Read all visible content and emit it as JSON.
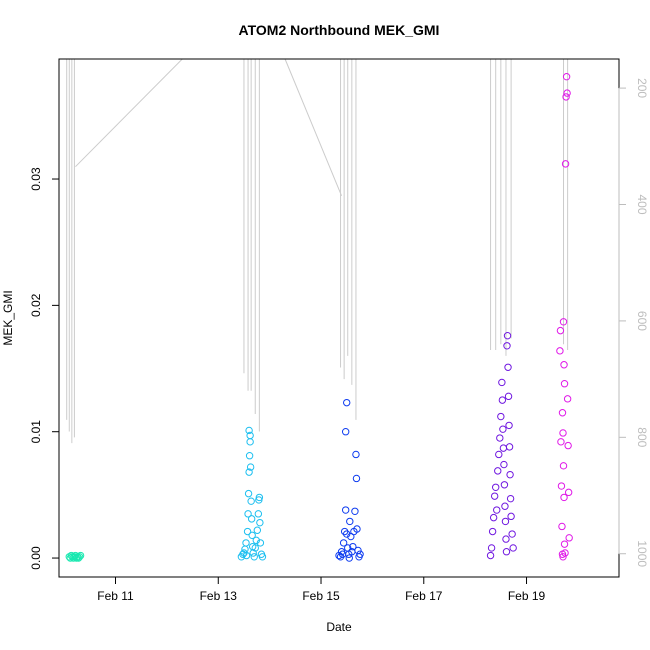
{
  "chart_data": {
    "type": "scatter",
    "title": "ATOM2 Northbound MEK_GMI",
    "xlabel": "Date",
    "ylabel": "MEK_GMI",
    "x_ticks": [
      "Feb 11",
      "Feb 13",
      "Feb 15",
      "Feb 17",
      "Feb 19"
    ],
    "x_tick_days": [
      11,
      13,
      15,
      17,
      19
    ],
    "xlim": [
      9.9,
      20.8
    ],
    "ylim": [
      -0.0015,
      0.0395
    ],
    "y_ticks": [
      "0.00",
      "0.01",
      "0.02",
      "0.03"
    ],
    "y_tick_values": [
      0,
      0.01,
      0.02,
      0.03
    ],
    "right_axis": {
      "ticks": [
        "200",
        "400",
        "600",
        "800",
        "1000"
      ],
      "tick_values": [
        200,
        400,
        600,
        800,
        1000
      ],
      "lim": [
        1040,
        150
      ],
      "color": "#bdbdbd"
    },
    "grid": false,
    "point_style": "open-circle",
    "series": [
      {
        "color": "#18e8b0",
        "points": [
          [
            10.1,
            0.0001
          ],
          [
            10.12,
            0.0
          ],
          [
            10.14,
            0.0002
          ],
          [
            10.16,
            0.0001
          ],
          [
            10.18,
            0.0
          ],
          [
            10.2,
            0.0001
          ],
          [
            10.22,
            0.0002
          ],
          [
            10.24,
            0.0
          ],
          [
            10.26,
            0.0001
          ],
          [
            10.28,
            0.0
          ],
          [
            10.3,
            0.0001
          ],
          [
            10.32,
            0.0002
          ]
        ]
      },
      {
        "color": "#1cbff0",
        "points": [
          [
            13.45,
            0.0001
          ],
          [
            13.48,
            0.0003
          ],
          [
            13.5,
            0.0004
          ],
          [
            13.52,
            0.0007
          ],
          [
            13.54,
            0.0012
          ],
          [
            13.55,
            0.0002
          ],
          [
            13.57,
            0.0021
          ],
          [
            13.58,
            0.0035
          ],
          [
            13.59,
            0.0051
          ],
          [
            13.6,
            0.0068
          ],
          [
            13.61,
            0.0081
          ],
          [
            13.62,
            0.0092
          ],
          [
            13.6,
            0.0101
          ],
          [
            13.62,
            0.0097
          ],
          [
            13.63,
            0.0072
          ],
          [
            13.64,
            0.0045
          ],
          [
            13.65,
            0.0031
          ],
          [
            13.66,
            0.0018
          ],
          [
            13.67,
            0.0009
          ],
          [
            13.68,
            0.0004
          ],
          [
            13.7,
            0.0001
          ],
          [
            13.72,
            0.0008
          ],
          [
            13.74,
            0.0014
          ],
          [
            13.76,
            0.0022
          ],
          [
            13.78,
            0.0035
          ],
          [
            13.79,
            0.0046
          ],
          [
            13.8,
            0.0048
          ],
          [
            13.81,
            0.0028
          ],
          [
            13.82,
            0.0012
          ],
          [
            13.84,
            0.0003
          ],
          [
            13.86,
            0.0001
          ]
        ]
      },
      {
        "color": "#0e3cf0",
        "points": [
          [
            15.35,
            0.0002
          ],
          [
            15.38,
            0.0001
          ],
          [
            15.4,
            0.0005
          ],
          [
            15.42,
            0.0003
          ],
          [
            15.44,
            0.0012
          ],
          [
            15.46,
            0.0021
          ],
          [
            15.48,
            0.0038
          ],
          [
            15.5,
            0.0019
          ],
          [
            15.52,
            0.0008
          ],
          [
            15.54,
            0.0003
          ],
          [
            15.55,
            0.0
          ],
          [
            15.5,
            0.0123
          ],
          [
            15.48,
            0.01
          ],
          [
            15.56,
            0.0029
          ],
          [
            15.58,
            0.0017
          ],
          [
            15.6,
            0.0005
          ],
          [
            15.62,
            0.0009
          ],
          [
            15.64,
            0.0021
          ],
          [
            15.66,
            0.0037
          ],
          [
            15.68,
            0.0082
          ],
          [
            15.69,
            0.0063
          ],
          [
            15.7,
            0.0023
          ],
          [
            15.72,
            0.0006
          ],
          [
            15.74,
            0.0001
          ],
          [
            15.76,
            0.0003
          ]
        ]
      },
      {
        "color": "#7018e0",
        "points": [
          [
            18.3,
            0.0002
          ],
          [
            18.32,
            0.0008
          ],
          [
            18.34,
            0.0021
          ],
          [
            18.36,
            0.0032
          ],
          [
            18.38,
            0.0049
          ],
          [
            18.4,
            0.0056
          ],
          [
            18.42,
            0.0038
          ],
          [
            18.44,
            0.0069
          ],
          [
            18.46,
            0.0082
          ],
          [
            18.48,
            0.0095
          ],
          [
            18.5,
            0.0112
          ],
          [
            18.52,
            0.0139
          ],
          [
            18.53,
            0.0125
          ],
          [
            18.54,
            0.0102
          ],
          [
            18.55,
            0.0087
          ],
          [
            18.56,
            0.0074
          ],
          [
            18.57,
            0.0058
          ],
          [
            18.58,
            0.0041
          ],
          [
            18.59,
            0.0029
          ],
          [
            18.6,
            0.0015
          ],
          [
            18.61,
            0.0005
          ],
          [
            18.62,
            0.0168
          ],
          [
            18.63,
            0.0176
          ],
          [
            18.64,
            0.0151
          ],
          [
            18.65,
            0.0128
          ],
          [
            18.66,
            0.0105
          ],
          [
            18.67,
            0.0088
          ],
          [
            18.68,
            0.0066
          ],
          [
            18.69,
            0.0047
          ],
          [
            18.7,
            0.0033
          ],
          [
            18.72,
            0.0019
          ],
          [
            18.74,
            0.0008
          ]
        ]
      },
      {
        "color": "#e018e8",
        "points": [
          [
            19.65,
            0.0164
          ],
          [
            19.66,
            0.018
          ],
          [
            19.67,
            0.0092
          ],
          [
            19.68,
            0.0057
          ],
          [
            19.69,
            0.0025
          ],
          [
            19.7,
            0.0003
          ],
          [
            19.71,
            0.0001
          ],
          [
            19.72,
            0.0187
          ],
          [
            19.73,
            0.0153
          ],
          [
            19.74,
            0.0138
          ],
          [
            19.7,
            0.0115
          ],
          [
            19.71,
            0.0099
          ],
          [
            19.72,
            0.0073
          ],
          [
            19.73,
            0.0048
          ],
          [
            19.74,
            0.0011
          ],
          [
            19.75,
            0.0004
          ],
          [
            19.76,
            0.0312
          ],
          [
            19.77,
            0.0365
          ],
          [
            19.78,
            0.0381
          ],
          [
            19.79,
            0.0368
          ],
          [
            19.8,
            0.0126
          ],
          [
            19.81,
            0.0089
          ],
          [
            19.82,
            0.0052
          ],
          [
            19.83,
            0.0016
          ]
        ]
      }
    ],
    "profile_lines": {
      "color": "#cccccc",
      "units": "right-axis",
      "segments": [
        {
          "x": 10.05,
          "top": 150,
          "bottom": 770
        },
        {
          "x": 10.1,
          "top": 150,
          "bottom": 790
        },
        {
          "x": 10.15,
          "top": 150,
          "bottom": 810
        },
        {
          "x": 10.2,
          "top": 150,
          "bottom": 800
        },
        {
          "x": 13.5,
          "top": 150,
          "bottom": 690
        },
        {
          "x": 13.58,
          "top": 150,
          "bottom": 720
        },
        {
          "x": 13.64,
          "top": 150,
          "bottom": 720
        },
        {
          "x": 13.72,
          "top": 150,
          "bottom": 760
        },
        {
          "x": 13.8,
          "top": 150,
          "bottom": 790
        },
        {
          "x": 15.38,
          "top": 150,
          "bottom": 680
        },
        {
          "x": 15.45,
          "top": 150,
          "bottom": 700
        },
        {
          "x": 15.52,
          "top": 150,
          "bottom": 660
        },
        {
          "x": 15.6,
          "top": 150,
          "bottom": 710
        },
        {
          "x": 15.68,
          "top": 150,
          "bottom": 770
        },
        {
          "x": 18.3,
          "top": 150,
          "bottom": 650
        },
        {
          "x": 18.4,
          "top": 150,
          "bottom": 650
        },
        {
          "x": 18.5,
          "top": 150,
          "bottom": 640
        },
        {
          "x": 18.6,
          "top": 150,
          "bottom": 660
        },
        {
          "x": 18.7,
          "top": 150,
          "bottom": 630
        },
        {
          "x": 19.72,
          "top": 150,
          "bottom": 640
        },
        {
          "x": 19.8,
          "top": 150,
          "bottom": 650
        }
      ],
      "connectors": [
        {
          "x1": 10.22,
          "y1": 335,
          "x2": 12.3,
          "y2": 150
        },
        {
          "x1": 14.3,
          "y1": 150,
          "x2": 15.4,
          "y2": 385
        }
      ]
    }
  }
}
